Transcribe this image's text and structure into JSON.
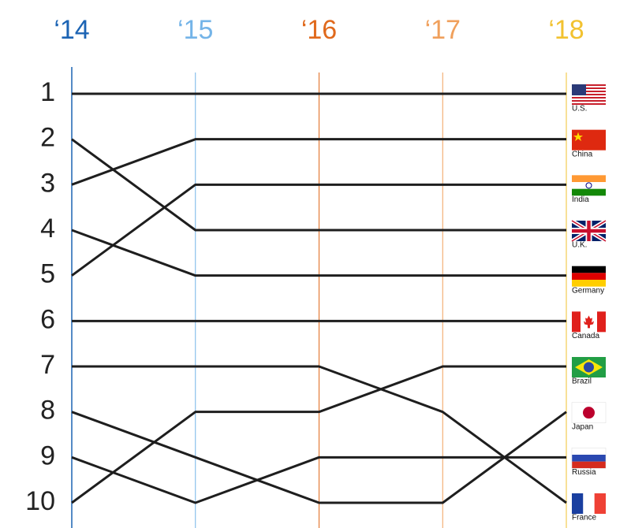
{
  "chart_data": {
    "type": "bump",
    "categories": [
      "‘14",
      "‘15",
      "‘16",
      "‘17",
      "‘18"
    ],
    "category_colors": [
      "#1c64b4",
      "#74b4e8",
      "#e0691c",
      "#f0a05c",
      "#f2c230"
    ],
    "ylim": [
      10,
      1
    ],
    "yticks": [
      1,
      2,
      3,
      4,
      5,
      6,
      7,
      8,
      9,
      10
    ],
    "series": [
      {
        "name": "U.S.",
        "color": "#1e1e1e",
        "values": [
          1,
          1,
          1,
          1,
          1
        ]
      },
      {
        "name": "China",
        "color": "#1e1e1e",
        "values": [
          3,
          2,
          2,
          2,
          2
        ]
      },
      {
        "name": "India",
        "color": "#1e1e1e",
        "values": [
          5,
          3,
          3,
          3,
          3
        ]
      },
      {
        "name": "U.K.",
        "color": "#1e1e1e",
        "values": [
          2,
          4,
          4,
          4,
          4
        ]
      },
      {
        "name": "Germany",
        "color": "#1e1e1e",
        "values": [
          4,
          5,
          5,
          5,
          5
        ]
      },
      {
        "name": "Canada",
        "color": "#1e1e1e",
        "values": [
          6,
          6,
          6,
          6,
          6
        ]
      },
      {
        "name": "Brazil",
        "color": "#1e1e1e",
        "values": [
          10,
          8,
          8,
          7,
          7
        ]
      },
      {
        "name": "Japan",
        "color": "#1e1e1e",
        "values": [
          8,
          9,
          10,
          10,
          8
        ]
      },
      {
        "name": "Russia",
        "color": "#1e1e1e",
        "values": [
          9,
          10,
          9,
          9,
          9
        ]
      },
      {
        "name": "France",
        "color": "#1e1e1e",
        "values": [
          7,
          7,
          7,
          8,
          10
        ]
      }
    ]
  }
}
